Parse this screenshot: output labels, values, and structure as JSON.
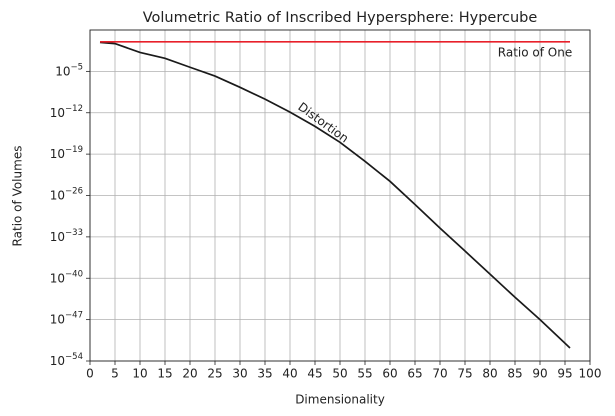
{
  "chart_data": {
    "type": "line",
    "title": "Volumetric Ratio of Inscribed Hypersphere: Hypercube",
    "x_label": "Dimensionality",
    "y_label": "Ratio of Volumes",
    "log_y": true,
    "grid": true,
    "annotations": [
      {
        "text": "Distortion"
      },
      {
        "text": "Ratio of One"
      }
    ],
    "series": [
      {
        "name": "Distortion",
        "color": "#1a1a1a",
        "x": [
          2,
          5,
          10,
          15,
          20,
          25,
          30,
          35,
          40,
          45,
          50,
          55,
          60,
          65,
          70,
          75,
          80,
          85,
          90,
          95,
          96
        ],
        "values": [
          0.8,
          0.5,
          0.016,
          0.0016,
          5e-05,
          1.6e-06,
          2e-08,
          2e-10,
          1.3e-12,
          5e-15,
          1e-17,
          6e-21,
          2.5e-24,
          3e-28,
          3e-32,
          4e-36,
          5e-40,
          6e-44,
          1e-47,
          1e-51,
          1.6e-52
        ]
      },
      {
        "name": "Ratio of One",
        "color": "#e8202a",
        "x": [
          2,
          96
        ],
        "values": [
          1,
          1
        ]
      }
    ],
    "xlim": [
      0,
      100
    ],
    "xticks": [
      0,
      5,
      10,
      15,
      20,
      25,
      30,
      35,
      40,
      45,
      50,
      55,
      60,
      65,
      70,
      75,
      80,
      85,
      90,
      95,
      100
    ],
    "ylim": [
      1e-54,
      100
    ],
    "yticks": [
      {
        "value": 1e-05,
        "label": "10−5"
      },
      {
        "value": 1e-12,
        "label": "10−12"
      },
      {
        "value": 1e-19,
        "label": "10−19"
      },
      {
        "value": 1e-26,
        "label": "10−26"
      },
      {
        "value": 1e-33,
        "label": "10−33"
      },
      {
        "value": 1e-40,
        "label": "10−40"
      },
      {
        "value": 1e-47,
        "label": "10−47"
      },
      {
        "value": 1e-54,
        "label": "10−54"
      }
    ]
  }
}
